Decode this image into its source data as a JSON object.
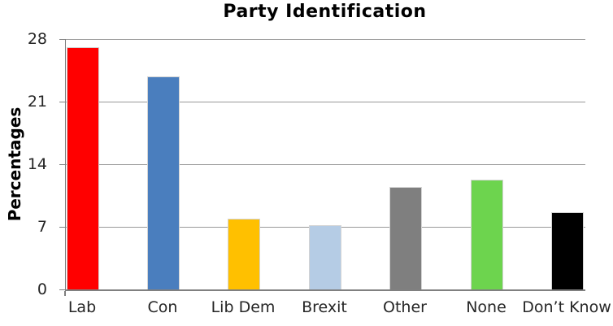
{
  "chart_data": {
    "type": "bar",
    "title": "Party Identification",
    "ylabel": "Percentages",
    "xlabel": "",
    "categories": [
      "Lab",
      "Con",
      "Lib Dem",
      "Brexit",
      "Other",
      "None",
      "Don’t Know"
    ],
    "values": [
      27.1,
      23.8,
      7.9,
      7.2,
      11.5,
      12.3,
      8.6
    ],
    "bar_colors": [
      "#FF0000",
      "#4A7EBE",
      "#FFC000",
      "#B5CCE5",
      "#7F7F7F",
      "#6DD44E",
      "#000000"
    ],
    "yticks": [
      0,
      7,
      14,
      21,
      28
    ],
    "ylim": [
      0,
      28
    ],
    "grid": true,
    "legend": false,
    "gridline_color": "#999999",
    "axis_color": "#808080"
  }
}
